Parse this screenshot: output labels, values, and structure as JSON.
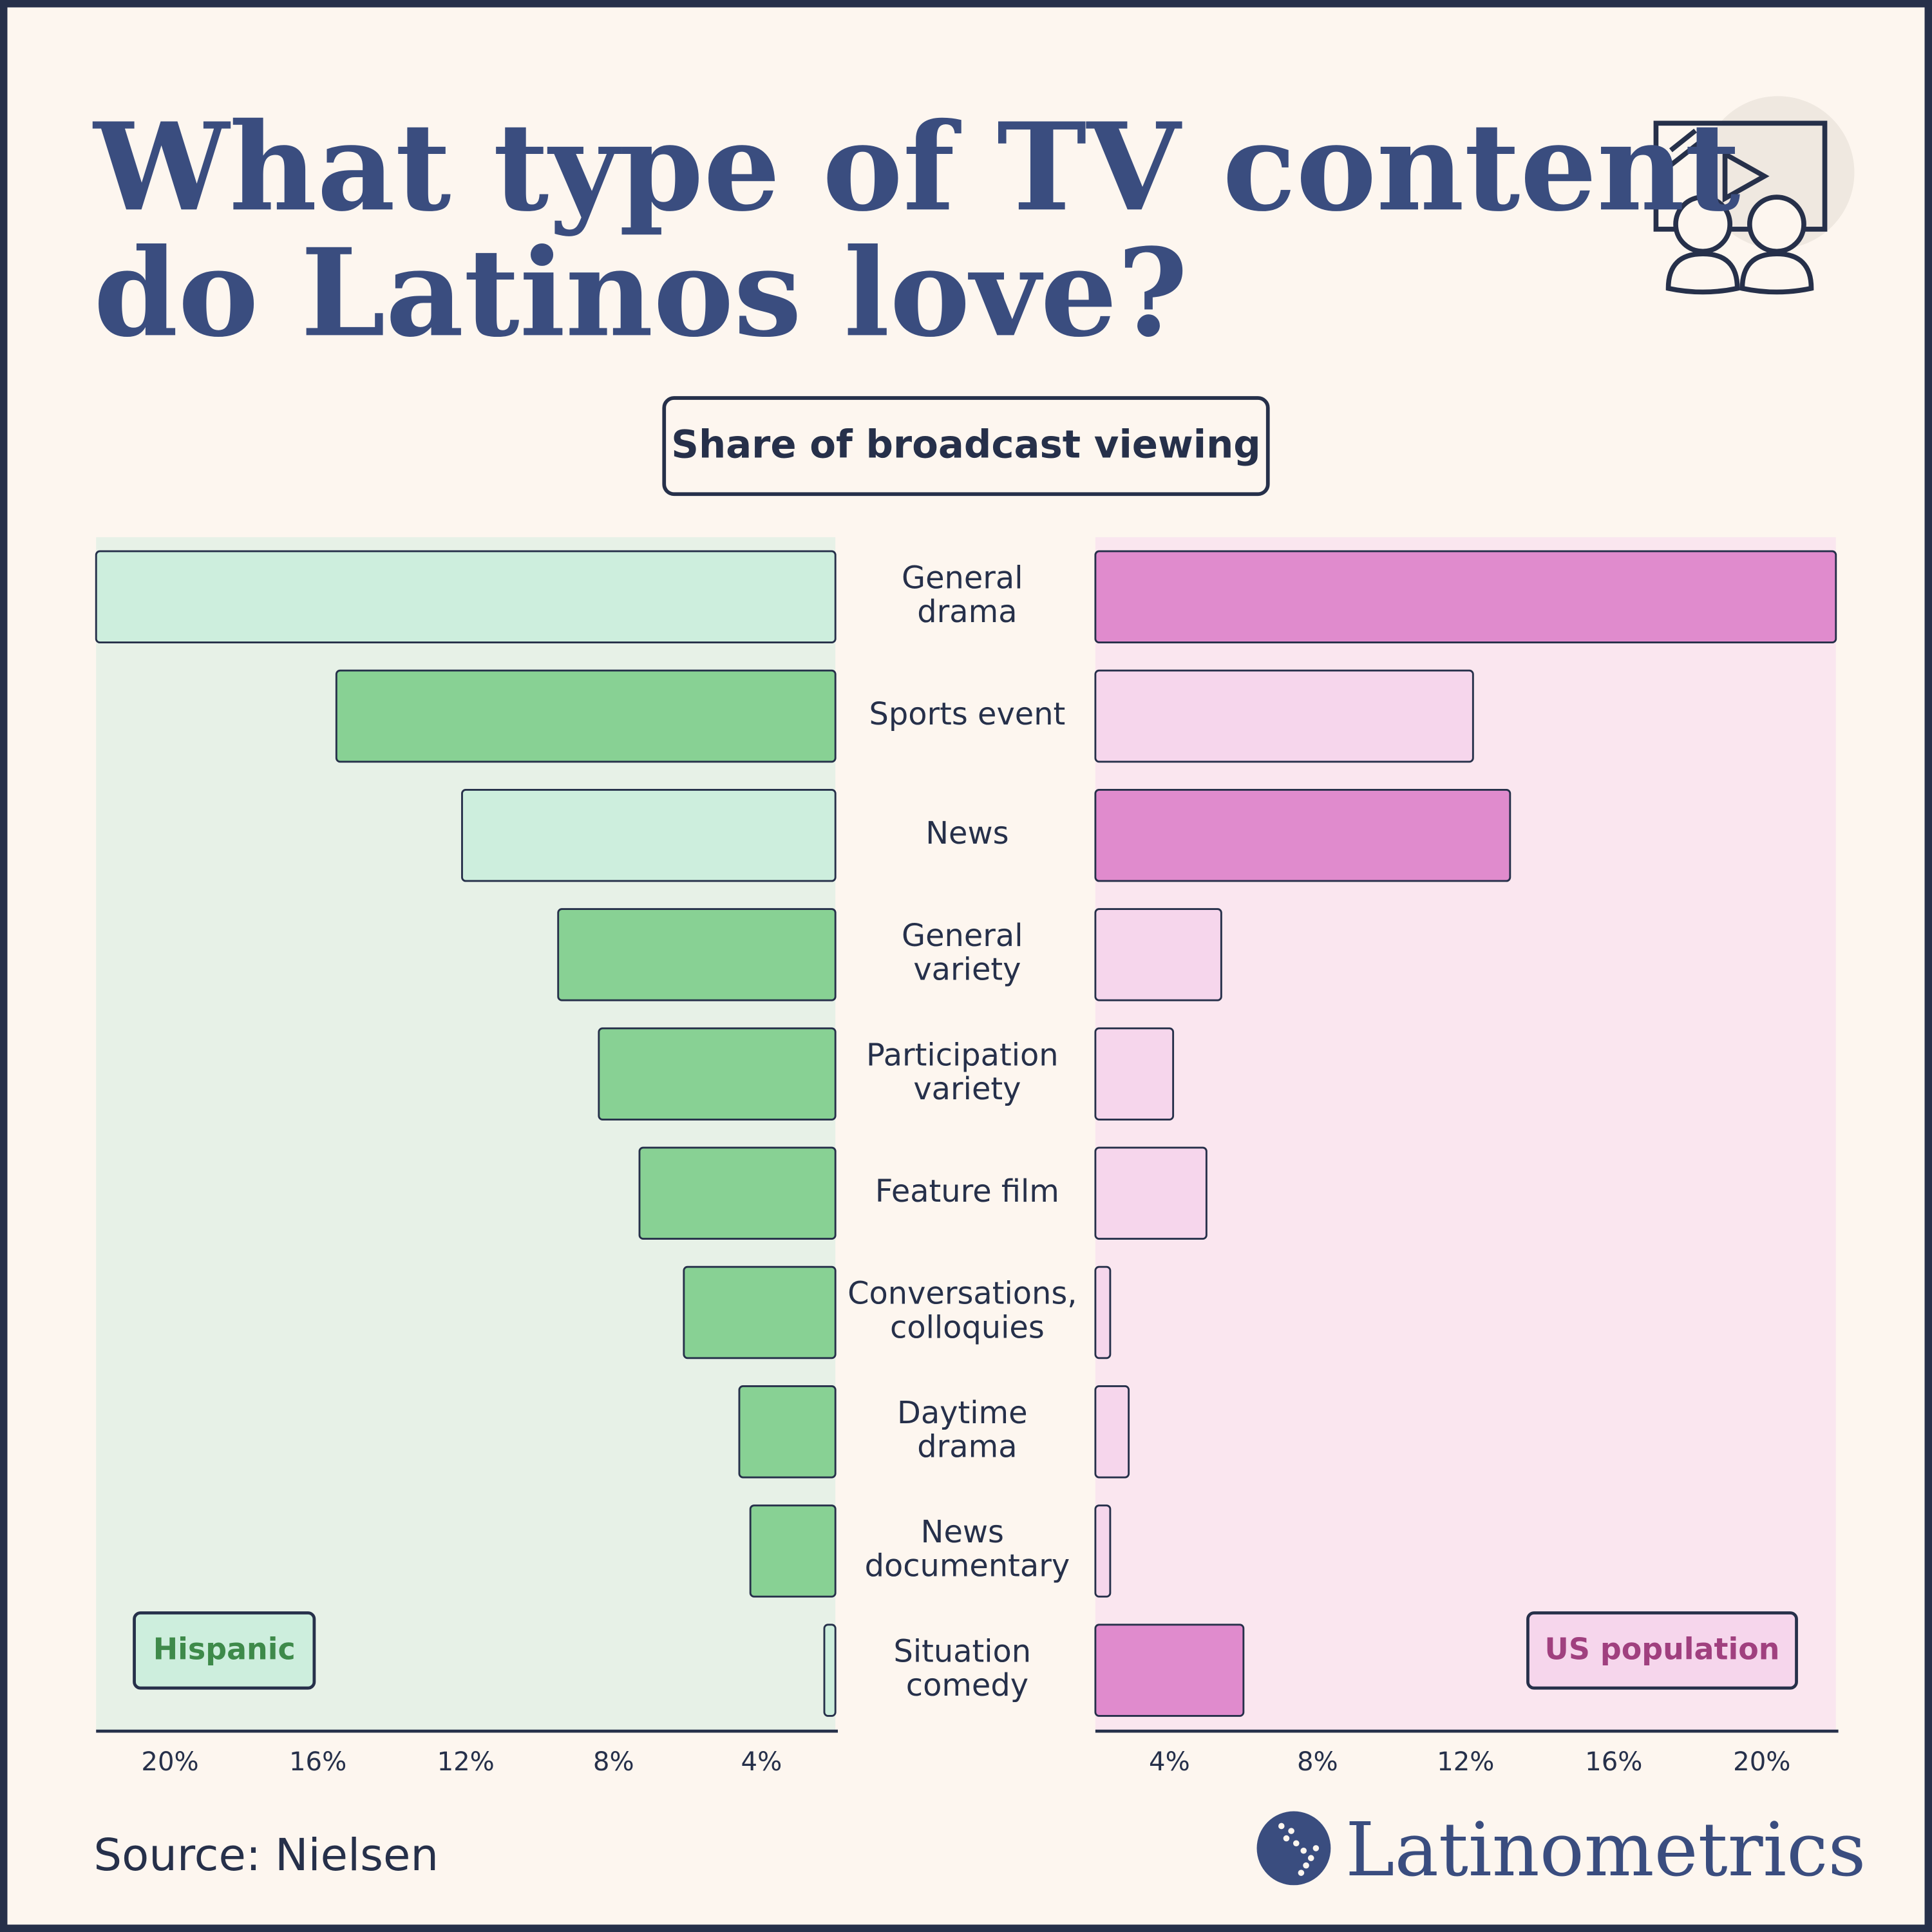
{
  "chart_data": {
    "type": "butterfly-bar",
    "title": "What type of TV content do Latinos love?",
    "subtitle": "Share of broadcast viewing",
    "categories": [
      "General drama",
      "Sports event",
      "News",
      "General variety",
      "Participation variety",
      "Feature film",
      "Conversations, colloquies",
      "Daytime drama",
      "News documentary",
      "Situation comedy"
    ],
    "series": [
      {
        "name": "Hispanic",
        "side": "left",
        "legend_color": "#cdeedd",
        "label_color": "#3e8a4a",
        "colors": [
          "#cdeedd",
          "#88d194",
          "#cdeedd",
          "#88d194",
          "#88d194",
          "#88d194",
          "#88d194",
          "#88d194",
          "#88d194",
          "#cdeedd"
        ],
        "values": [
          22,
          15.5,
          12.1,
          9.5,
          8.4,
          7.3,
          6.1,
          4.6,
          4.3,
          2.3
        ]
      },
      {
        "name": "US population",
        "side": "right",
        "legend_color": "#f6d6ec",
        "label_color": "#a0407f",
        "colors": [
          "#e08bcd",
          "#f6d6ec",
          "#e08bcd",
          "#f6d6ec",
          "#f6d6ec",
          "#f6d6ec",
          "#f6d6ec",
          "#f6d6ec",
          "#f6d6ec",
          "#e08bcd"
        ],
        "values": [
          22,
          12.2,
          13.2,
          5.4,
          4.1,
          5.0,
          2.4,
          2.9,
          2.4,
          6.0
        ]
      }
    ],
    "xlim": [
      2,
      22
    ],
    "xticks": [
      {
        "value": 4,
        "label": "4%"
      },
      {
        "value": 8,
        "label": "8%"
      },
      {
        "value": 12,
        "label": "12%"
      },
      {
        "value": 16,
        "label": "16%"
      },
      {
        "value": 20,
        "label": "20%"
      }
    ],
    "source": "Source: Nielsen",
    "brand": "Latinometrics"
  }
}
